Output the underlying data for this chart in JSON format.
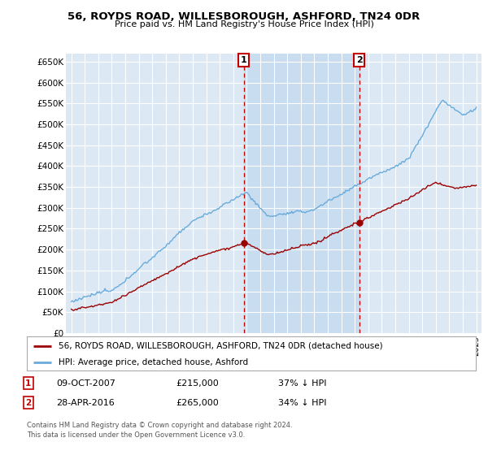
{
  "title": "56, ROYDS ROAD, WILLESBOROUGH, ASHFORD, TN24 0DR",
  "subtitle": "Price paid vs. HM Land Registry's House Price Index (HPI)",
  "bg_color": "#dce9f5",
  "highlight_color": "#c8ddf0",
  "hpi_color": "#6aabdb",
  "price_color": "#9b0000",
  "dashed_color": "#c00000",
  "ylim": [
    0,
    670000
  ],
  "yticks": [
    0,
    50000,
    100000,
    150000,
    200000,
    250000,
    300000,
    350000,
    400000,
    450000,
    500000,
    550000,
    600000,
    650000
  ],
  "ytick_labels": [
    "£0",
    "£50K",
    "£100K",
    "£150K",
    "£200K",
    "£250K",
    "£300K",
    "£350K",
    "£400K",
    "£450K",
    "£500K",
    "£550K",
    "£600K",
    "£650K"
  ],
  "sale1_x": 2007.77,
  "sale1_y": 215000,
  "sale1_label": "1",
  "sale1_date": "09-OCT-2007",
  "sale1_price": "£215,000",
  "sale1_hpi": "37% ↓ HPI",
  "sale2_x": 2016.33,
  "sale2_y": 265000,
  "sale2_label": "2",
  "sale2_date": "28-APR-2016",
  "sale2_price": "£265,000",
  "sale2_hpi": "34% ↓ HPI",
  "legend_line1": "56, ROYDS ROAD, WILLESBOROUGH, ASHFORD, TN24 0DR (detached house)",
  "legend_line2": "HPI: Average price, detached house, Ashford",
  "footer1": "Contains HM Land Registry data © Crown copyright and database right 2024.",
  "footer2": "This data is licensed under the Open Government Licence v3.0.",
  "xlim_start": 1994.6,
  "xlim_end": 2025.4
}
